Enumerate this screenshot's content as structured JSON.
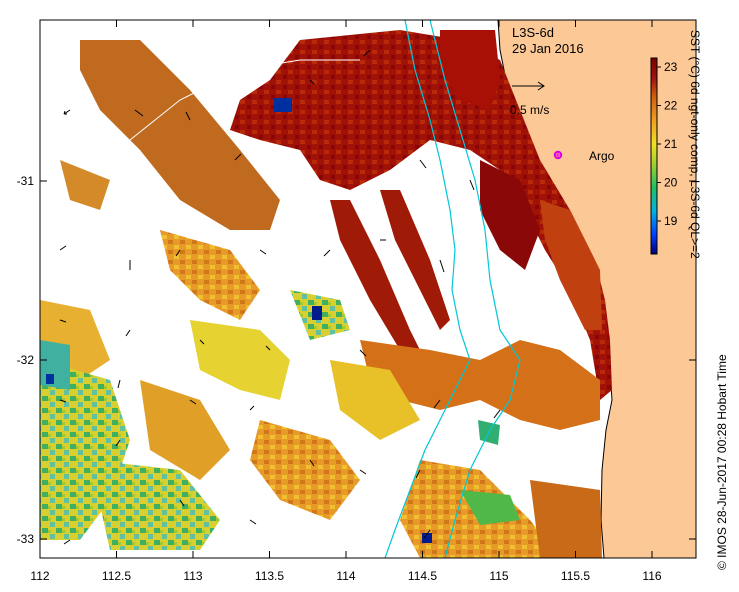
{
  "map": {
    "product": "L3S-6d",
    "date": "29 Jan 2016",
    "reference_arrow_label": "0.5 m/s",
    "platform_label": "Argo",
    "platform_color": "#e000e0",
    "land_color": "#fbc896",
    "coastline_color": "#000000",
    "bathymetry_color": "#00c8d8",
    "x_ticks": [
      "112",
      "112.5",
      "113",
      "113.5",
      "114",
      "114.5",
      "115",
      "115.5",
      "116"
    ],
    "y_ticks": [
      "-31",
      "-32",
      "-33"
    ]
  },
  "colorbar": {
    "label": "SST (°C) 6d ngt-only comp, L3S-6d QL>=2",
    "ticks": [
      "23",
      "22",
      "21",
      "20",
      "19"
    ],
    "colors": [
      "#00007a",
      "#0040ff",
      "#00b4e0",
      "#20c060",
      "#a0d030",
      "#f0e020",
      "#f0a020",
      "#d06010",
      "#a01010",
      "#7a0000"
    ]
  },
  "footer": {
    "credit": "© IMOS 28-Jun-2017 00:28 Hobart Time"
  }
}
